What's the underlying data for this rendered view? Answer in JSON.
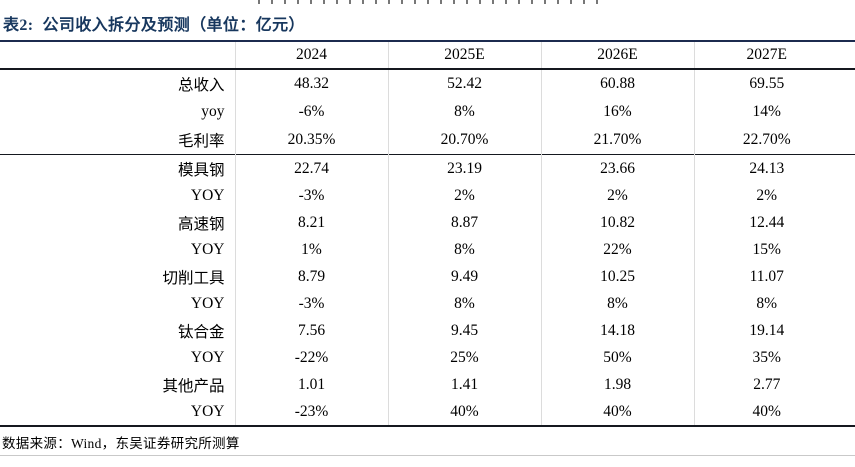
{
  "title": {
    "prefix": "表2:",
    "text": "公司收入拆分及预测（单位：亿元）"
  },
  "table": {
    "columns": [
      "",
      "2024",
      "2025E",
      "2026E",
      "2027E"
    ],
    "sections": [
      {
        "rows": [
          {
            "label": "总收入",
            "values": [
              "48.32",
              "52.42",
              "60.88",
              "69.55"
            ]
          },
          {
            "label": "yoy",
            "values": [
              "-6%",
              "8%",
              "16%",
              "14%"
            ]
          },
          {
            "label": "毛利率",
            "values": [
              "20.35%",
              "20.70%",
              "21.70%",
              "22.70%"
            ]
          }
        ]
      },
      {
        "rows": [
          {
            "label": "模具钢",
            "values": [
              "22.74",
              "23.19",
              "23.66",
              "24.13"
            ]
          },
          {
            "label": "YOY",
            "values": [
              "-3%",
              "2%",
              "2%",
              "2%"
            ]
          },
          {
            "label": "高速钢",
            "values": [
              "8.21",
              "8.87",
              "10.82",
              "12.44"
            ]
          },
          {
            "label": "YOY",
            "values": [
              "1%",
              "8%",
              "22%",
              "15%"
            ]
          },
          {
            "label": "切削工具",
            "values": [
              "8.79",
              "9.49",
              "10.25",
              "11.07"
            ]
          },
          {
            "label": "YOY",
            "values": [
              "-3%",
              "8%",
              "8%",
              "8%"
            ]
          },
          {
            "label": "钛合金",
            "values": [
              "7.56",
              "9.45",
              "14.18",
              "19.14"
            ]
          },
          {
            "label": "YOY",
            "values": [
              "-22%",
              "25%",
              "50%",
              "35%"
            ]
          },
          {
            "label": "其他产品",
            "values": [
              "1.01",
              "1.41",
              "1.98",
              "2.77"
            ]
          },
          {
            "label": "YOY",
            "values": [
              "-23%",
              "40%",
              "40%",
              "40%"
            ]
          }
        ]
      }
    ]
  },
  "footer": {
    "source": "数据来源：Wind，东吴证券研究所测算"
  },
  "colors": {
    "title_navy": "#17375E",
    "rule_dark": "#15181f",
    "grid_light": "#dcdcdc",
    "text": "#000000"
  }
}
